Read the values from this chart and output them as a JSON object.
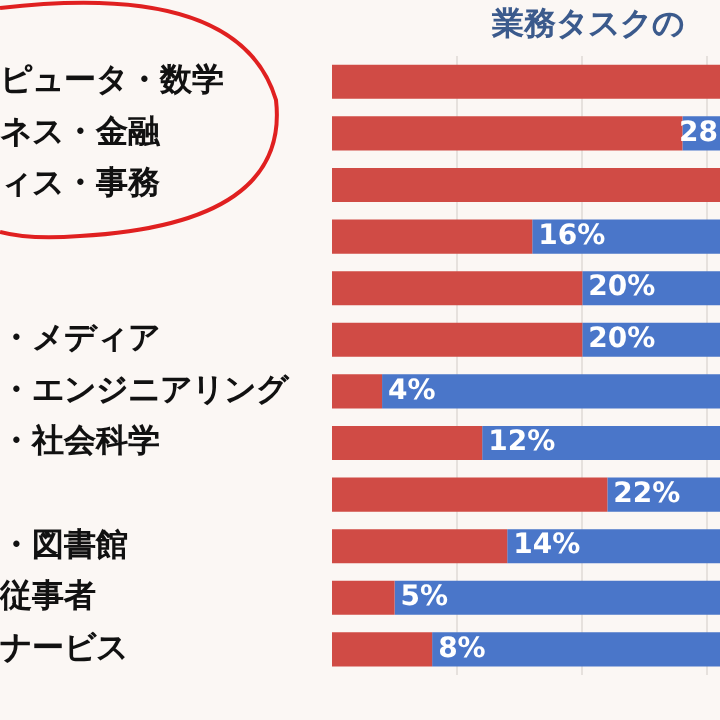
{
  "chart_data": {
    "type": "bar",
    "orientation": "horizontal",
    "stacked": true,
    "title": "業務タスクの",
    "categories": [
      "ピュータ・数学",
      "ネス・金融",
      "ィス・事務",
      null,
      null,
      "・メディア",
      "・エンジニアリング",
      "・社会科学",
      null,
      "・図書館",
      "従事者",
      "ナービス"
    ],
    "series": [
      {
        "color": "#d04b45",
        "values": [
          31,
          28,
          31,
          16,
          20,
          20,
          4,
          12,
          22,
          14,
          5,
          8
        ],
        "value_labels": [
          null,
          "28",
          null,
          "16%",
          "20%",
          "20%",
          "4%",
          "12%",
          "22%",
          "14%",
          "5%",
          "8%"
        ]
      },
      {
        "color": "#4a76c9",
        "values": [
          null,
          3,
          null,
          15,
          11,
          11,
          27,
          19,
          9,
          17,
          26,
          23
        ]
      }
    ],
    "xlim": [
      0,
      31
    ],
    "xticks": [
      {
        "value": 10,
        "label": null
      },
      {
        "value": 20,
        "label": null
      },
      {
        "value": 30,
        "label": null
      }
    ],
    "grid": "x",
    "legend": false
  }
}
